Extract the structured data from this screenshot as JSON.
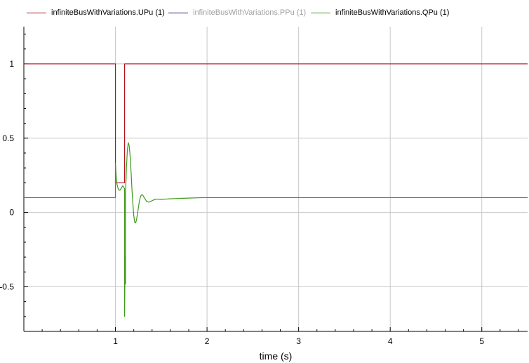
{
  "chart_data": {
    "type": "line",
    "xlabel": "time (s)",
    "ylabel": "",
    "xlim": [
      0.0,
      5.5
    ],
    "ylim": [
      -0.8,
      1.25
    ],
    "grid": true,
    "legend_placement": "top",
    "x_ticks": [
      1,
      2,
      3,
      4,
      5
    ],
    "y_ticks": [
      -0.5,
      0,
      0.5,
      1
    ],
    "x_tick_labels": [
      "1",
      "2",
      "3",
      "4",
      "5"
    ],
    "y_tick_labels": [
      "-0.5",
      "0",
      "0.5",
      "1"
    ],
    "series": [
      {
        "name": "infiniteBusWithVariations.UPu (1)",
        "color": "#b01020",
        "dimmed": false,
        "x": [
          0,
          1.0,
          1.0,
          1.1,
          1.1,
          5.5
        ],
        "y": [
          1,
          1,
          0.2,
          0.2,
          1,
          1
        ]
      },
      {
        "name": "infiniteBusWithVariations.PPu (1)",
        "color": "#1a1a8c",
        "dimmed": true,
        "x": [],
        "y": []
      },
      {
        "name": "infiniteBusWithVariations.QPu (1)",
        "color": "#3c9a1a",
        "dimmed": false,
        "x": [
          0,
          1.0,
          1.0,
          1.01,
          1.02,
          1.03,
          1.04,
          1.05,
          1.06,
          1.07,
          1.08,
          1.09,
          1.1,
          1.1,
          1.105,
          1.11,
          1.11,
          1.12,
          1.13,
          1.14,
          1.15,
          1.16,
          1.17,
          1.18,
          1.19,
          1.2,
          1.21,
          1.22,
          1.23,
          1.24,
          1.25,
          1.26,
          1.27,
          1.28,
          1.29,
          1.3,
          1.32,
          1.34,
          1.36,
          1.38,
          1.4,
          1.42,
          1.45,
          1.5,
          1.55,
          1.6,
          1.7,
          1.8,
          1.9,
          2.0,
          5.5
        ],
        "y": [
          0.1,
          0.1,
          0.33,
          0.22,
          0.18,
          0.16,
          0.15,
          0.15,
          0.16,
          0.17,
          0.18,
          0.17,
          0.16,
          -0.7,
          -0.3,
          -0.48,
          0.12,
          0.3,
          0.42,
          0.47,
          0.45,
          0.38,
          0.28,
          0.16,
          0.06,
          -0.02,
          -0.065,
          -0.07,
          -0.05,
          -0.01,
          0.03,
          0.07,
          0.1,
          0.115,
          0.12,
          0.115,
          0.095,
          0.075,
          0.07,
          0.072,
          0.08,
          0.085,
          0.09,
          0.088,
          0.09,
          0.092,
          0.095,
          0.097,
          0.099,
          0.1,
          0.1
        ]
      }
    ]
  }
}
